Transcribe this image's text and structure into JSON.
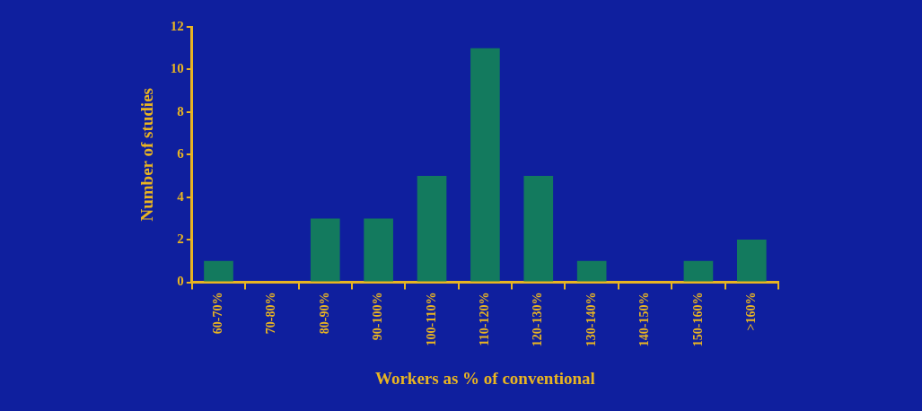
{
  "chart_data": {
    "type": "bar",
    "xlabel": "Workers as % of conventional",
    "ylabel": "Number of studies",
    "categories": [
      "60-70%",
      "70-80%",
      "80-90%",
      "90-100%",
      "100-110%",
      "110-120%",
      "120-130%",
      "130-140%",
      "140-150%",
      "150-160%",
      ">160%"
    ],
    "values": [
      1,
      0,
      3,
      3,
      5,
      11,
      5,
      1,
      0,
      1,
      2
    ],
    "color": "#137a5e",
    "ylim": [
      0,
      12
    ],
    "yticks": [
      0,
      2,
      4,
      6,
      8,
      10,
      12
    ],
    "grid": false,
    "legend": false
  }
}
